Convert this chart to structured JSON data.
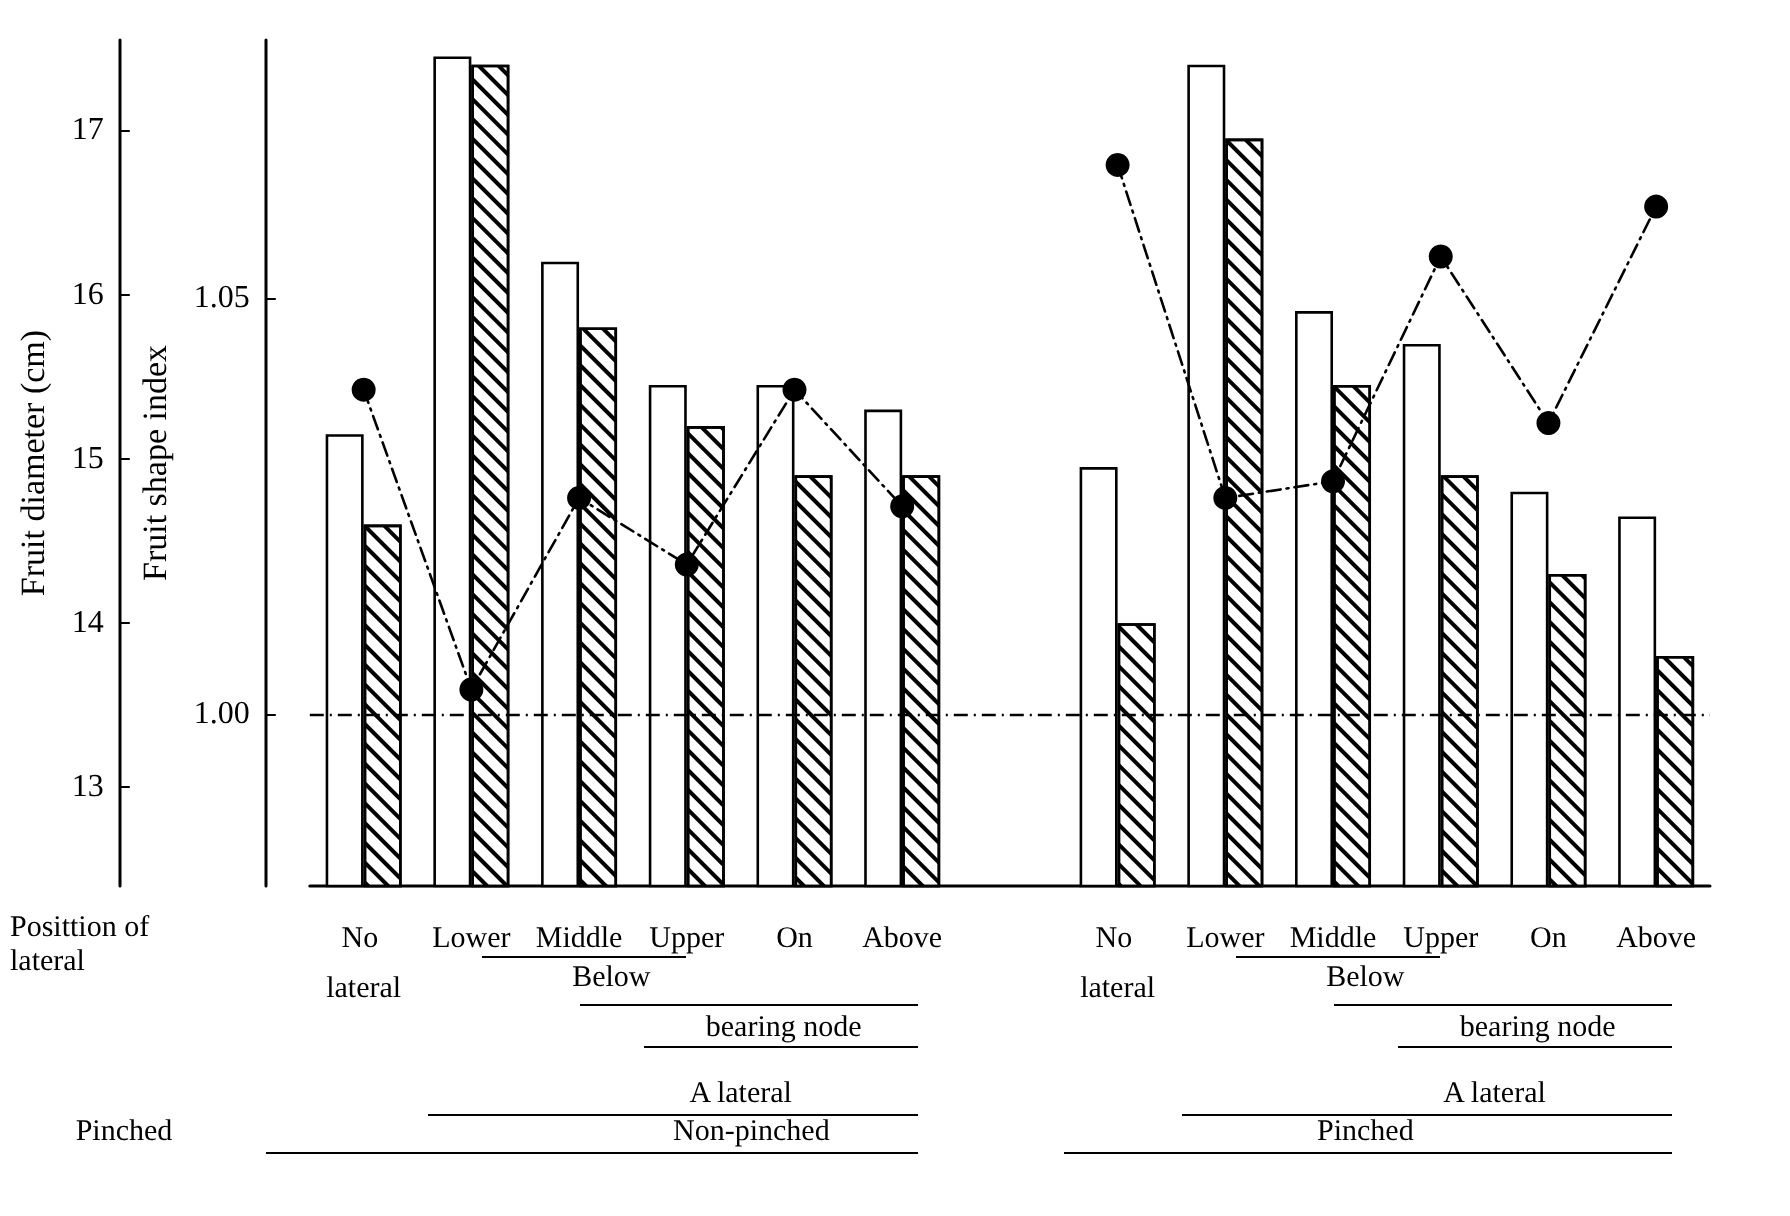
{
  "chart_data": {
    "type": "bar",
    "ylabel": "Fruit diameter (cm)",
    "y2label": "Fruit shape index",
    "categories": [
      "No lateral",
      "Lower",
      "Middle",
      "Upper",
      "On",
      "Above",
      null,
      "No lateral",
      "Lower",
      "Middle",
      "Upper",
      "On",
      "Above"
    ],
    "series": [
      {
        "color": "#ffffff",
        "values": [
          15.15,
          17.45,
          16.2,
          15.45,
          15.45,
          15.3,
          null,
          14.95,
          17.4,
          15.9,
          15.7,
          14.8,
          14.65
        ]
      },
      {
        "color": "#ffffff",
        "values": [
          14.6,
          17.4,
          15.8,
          15.2,
          14.9,
          14.9,
          null,
          14.0,
          16.95,
          15.45,
          14.9,
          14.3,
          13.8
        ]
      },
      {
        "type": "line",
        "axis": "y2",
        "color": "#000000",
        "marker": "circle",
        "line_style": "dashed",
        "values": [
          1.039,
          1.003,
          1.026,
          1.018,
          1.039,
          1.025,
          null,
          1.066,
          1.026,
          1.028,
          1.055,
          1.035,
          1.061
        ]
      }
    ],
    "ylim": [
      12.4,
      17.55
    ],
    "yticks": [
      13,
      14,
      15,
      16,
      17
    ],
    "y2lim": [
      0.9794,
      1.081
    ],
    "y2ticks": [
      {
        "value": 1.0,
        "label": "1.00"
      },
      1.05
    ],
    "ref_lines": [
      {
        "axis": "y2",
        "value": 1.0,
        "line_style": "dashed"
      }
    ],
    "grid": false,
    "annotations": [
      "Posittion of lateral",
      "Pinched",
      "Below",
      "bearing node",
      "A lateral",
      "Non-pinched",
      "Below",
      "bearing node",
      "A lateral",
      "Pinched"
    ]
  }
}
